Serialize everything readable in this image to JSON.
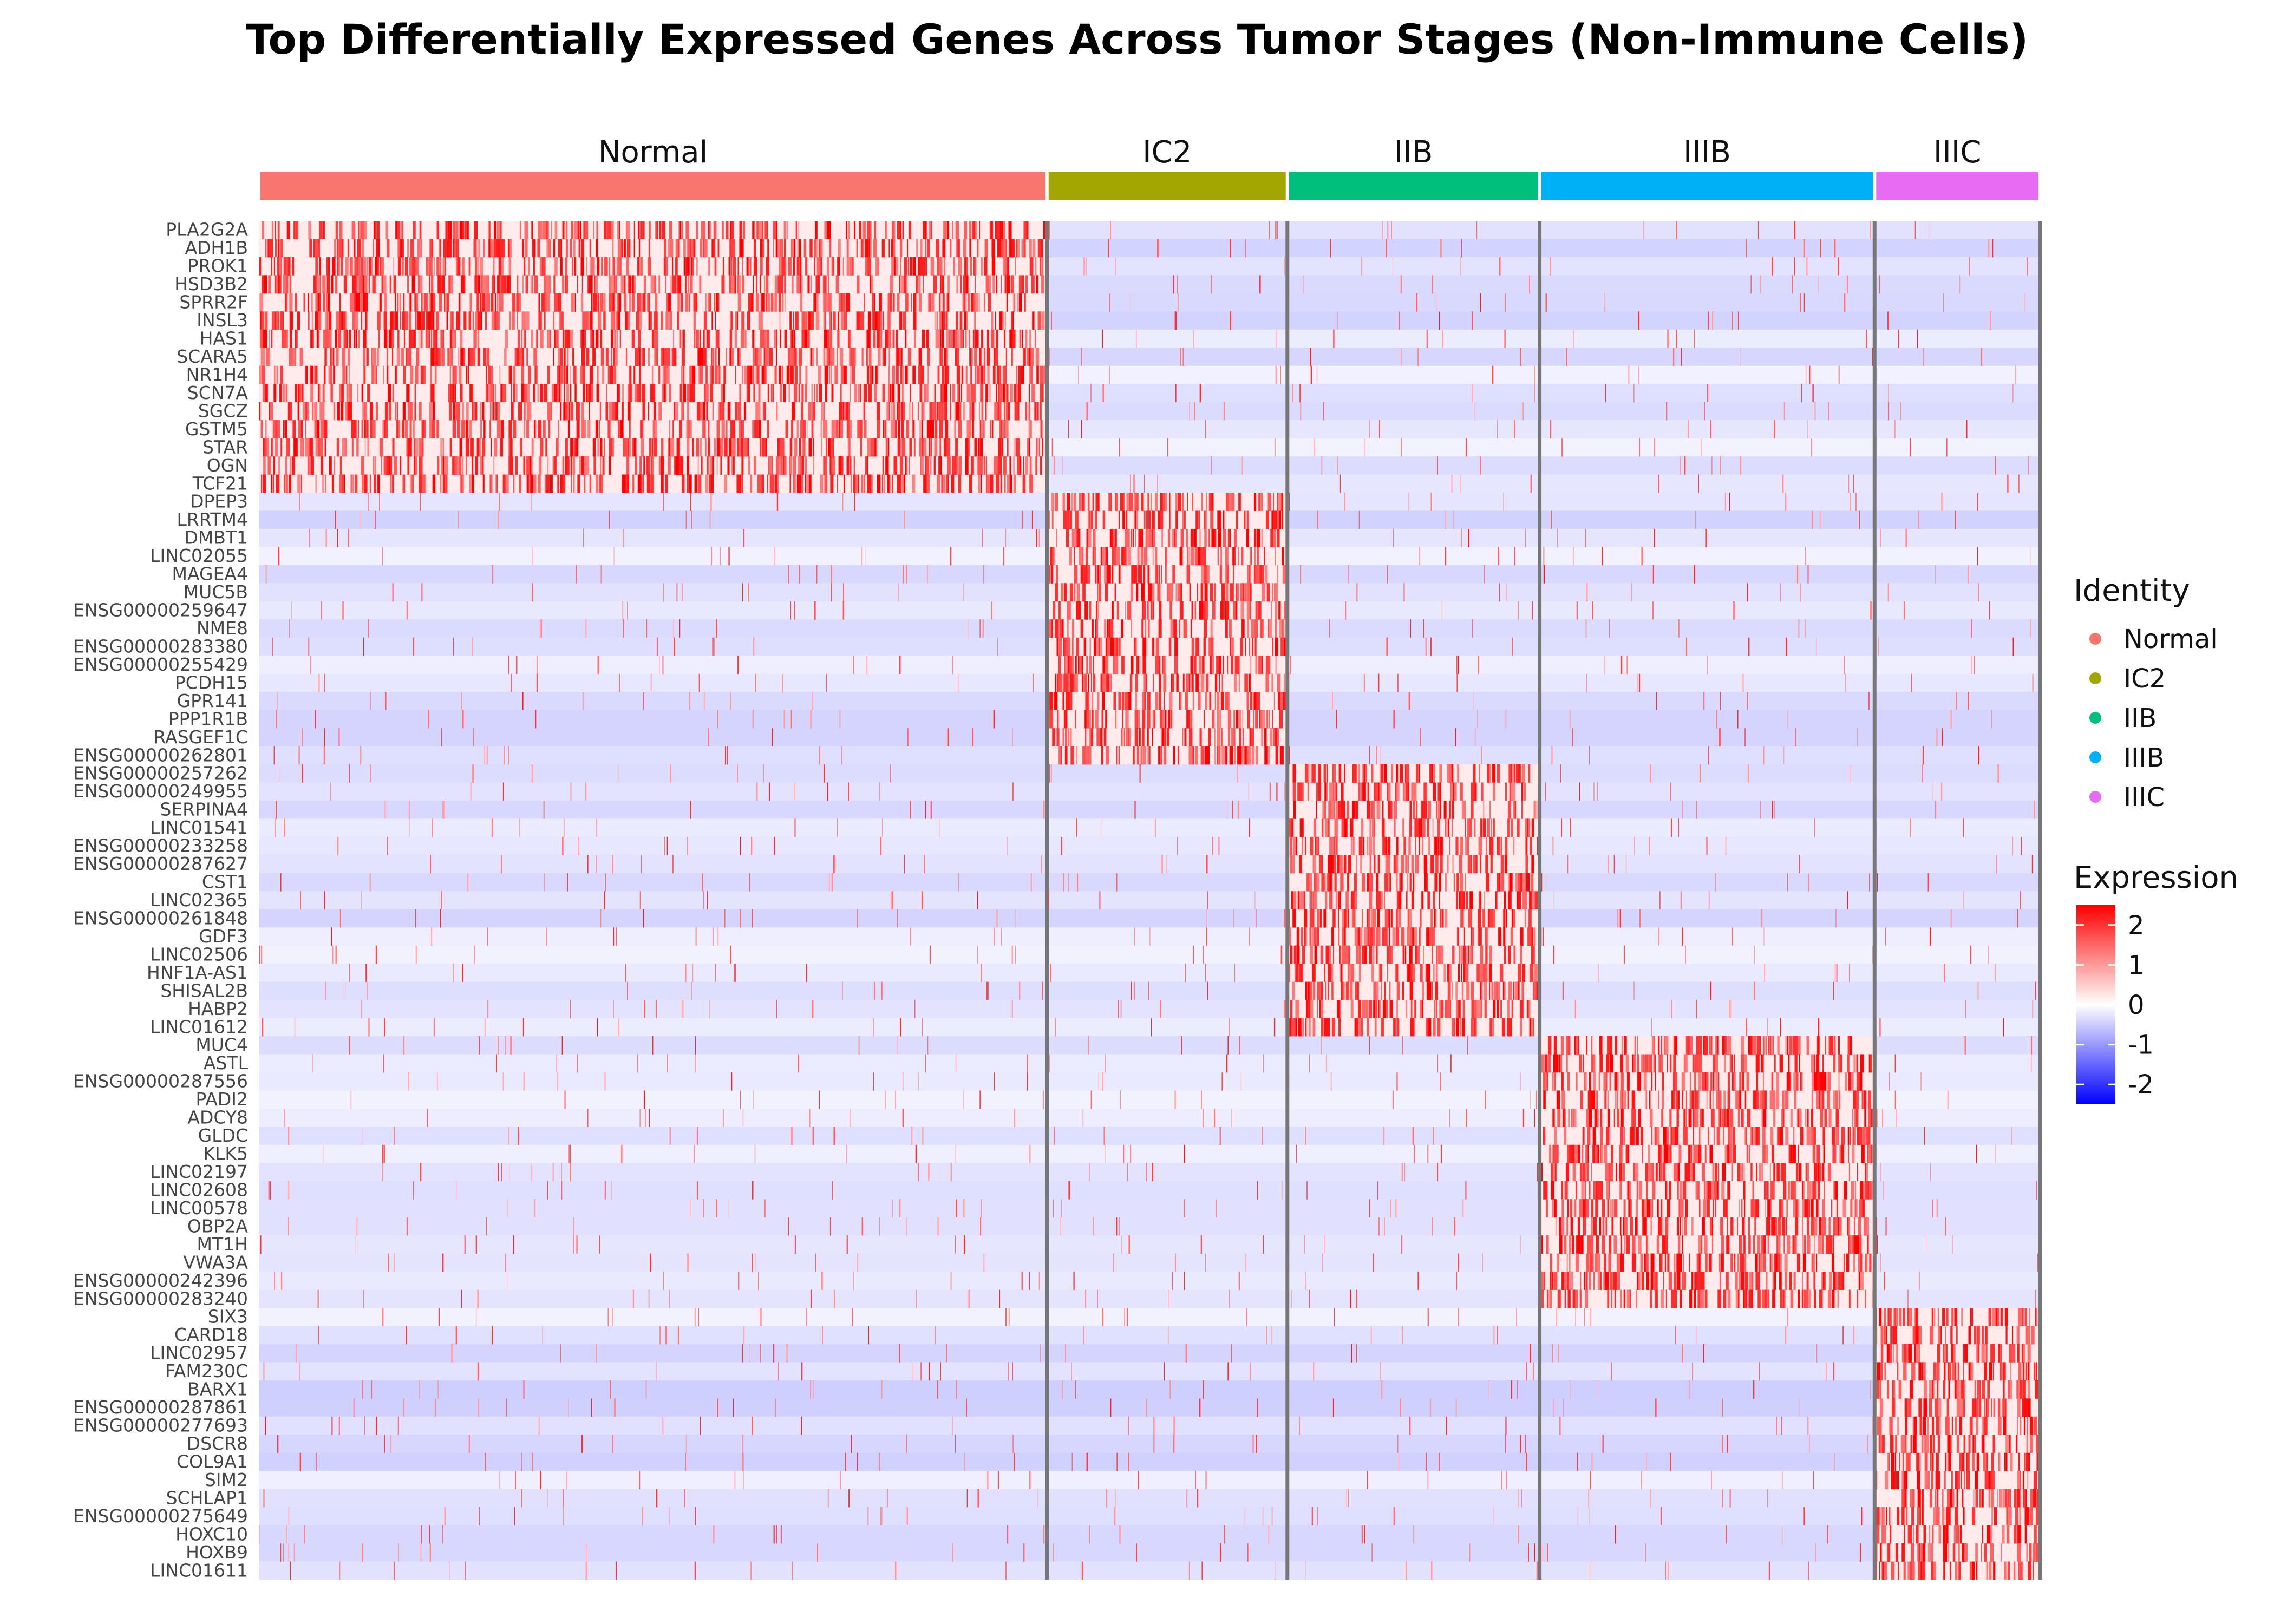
{
  "chart_data": {
    "type": "heatmap",
    "title": "Top Differentially Expressed Genes Across Tumor Stages (Non-Immune Cells)",
    "groups": [
      {
        "name": "Normal",
        "color": "#F8766D",
        "cells": 1000
      },
      {
        "name": "IC2",
        "color": "#A3A500",
        "cells": 305
      },
      {
        "name": "IIB",
        "color": "#00BF7D",
        "cells": 320
      },
      {
        "name": "IIIB",
        "color": "#00B0F6",
        "cells": 425
      },
      {
        "name": "IIIC",
        "color": "#E76BF3",
        "cells": 210
      }
    ],
    "gene_blocks": [
      {
        "group": "Normal",
        "genes": [
          "PLA2G2A",
          "ADH1B",
          "PROK1",
          "HSD3B2",
          "SPRR2F",
          "INSL3",
          "HAS1",
          "SCARA5",
          "NR1H4",
          "SCN7A",
          "SGCZ",
          "GSTM5",
          "STAR",
          "OGN",
          "TCF21"
        ]
      },
      {
        "group": "IC2",
        "genes": [
          "DPEP3",
          "LRRTM4",
          "DMBT1",
          "LINC02055",
          "MAGEA4",
          "MUC5B",
          "ENSG00000259647",
          "NME8",
          "ENSG00000283380",
          "ENSG00000255429",
          "PCDH15",
          "GPR141",
          "PPP1R1B",
          "RASGEF1C",
          "ENSG00000262801"
        ]
      },
      {
        "group": "IIB",
        "genes": [
          "ENSG00000257262",
          "ENSG00000249955",
          "SERPINA4",
          "LINC01541",
          "ENSG00000233258",
          "ENSG00000287627",
          "CST1",
          "LINC02365",
          "ENSG00000261848",
          "GDF3",
          "LINC02506",
          "HNF1A-AS1",
          "SHISAL2B",
          "HABP2",
          "LINC01612"
        ]
      },
      {
        "group": "IIIB",
        "genes": [
          "MUC4",
          "ASTL",
          "ENSG00000287556",
          "PADI2",
          "ADCY8",
          "GLDC",
          "KLK5",
          "LINC02197",
          "LINC02608",
          "LINC00578",
          "OBP2A",
          "MT1H",
          "VWA3A",
          "ENSG00000242396",
          "ENSG00000283240"
        ]
      },
      {
        "group": "IIIC",
        "genes": [
          "SIX3",
          "CARD18",
          "LINC02957",
          "FAM230C",
          "BARX1",
          "ENSG00000287861",
          "ENSG00000277693",
          "DSCR8",
          "COL9A1",
          "SIM2",
          "SCHLAP1",
          "ENSG00000275649",
          "HOXC10",
          "HOXB9",
          "LINC01611"
        ]
      }
    ],
    "legend": {
      "identity_title": "Identity",
      "expression_title": "Expression",
      "expression_ticks": [
        2,
        1,
        0,
        -1,
        -2
      ],
      "placement": "right"
    },
    "color_scale": {
      "low": "#0000FF",
      "mid": "#FFFFFF",
      "high": "#FF0000",
      "min": -2.5,
      "max": 2.5
    },
    "typical_values": {
      "high_expression": 2.5,
      "background_in_group": 0.2,
      "background_out_group": -0.3
    }
  }
}
